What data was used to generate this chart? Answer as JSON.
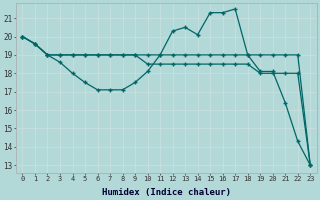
{
  "background_color": "#b2d8d8",
  "grid_color": "#d0e8e8",
  "line_color": "#006666",
  "xlabel": "Humidex (Indice chaleur)",
  "xlim": [
    -0.5,
    23.5
  ],
  "ylim": [
    12.6,
    21.8
  ],
  "yticks": [
    13,
    14,
    15,
    16,
    17,
    18,
    19,
    20,
    21
  ],
  "xticks": [
    0,
    1,
    2,
    3,
    4,
    5,
    6,
    7,
    8,
    9,
    10,
    11,
    12,
    13,
    14,
    15,
    16,
    17,
    18,
    19,
    20,
    21,
    22,
    23
  ],
  "line1_x": [
    0,
    1,
    2,
    3,
    4,
    5,
    6,
    7,
    8,
    9,
    10,
    11,
    12,
    13,
    14,
    15,
    16,
    17,
    18,
    19,
    20,
    21,
    22,
    23
  ],
  "line1_y": [
    20.0,
    19.6,
    19.0,
    18.6,
    18.0,
    17.5,
    17.1,
    17.1,
    17.1,
    17.5,
    18.1,
    19.0,
    20.3,
    20.5,
    20.1,
    21.3,
    21.3,
    21.5,
    19.0,
    18.1,
    18.1,
    16.4,
    14.3,
    13.0
  ],
  "line2_x": [
    0,
    1,
    2,
    3,
    4,
    5,
    6,
    7,
    8,
    9,
    10,
    11,
    12,
    13,
    14,
    15,
    16,
    17,
    18,
    19,
    20,
    21,
    22,
    23
  ],
  "line2_y": [
    20.0,
    19.6,
    19.0,
    19.0,
    19.0,
    19.0,
    19.0,
    19.0,
    19.0,
    19.0,
    18.5,
    18.5,
    18.5,
    18.5,
    18.5,
    18.5,
    18.5,
    18.5,
    18.5,
    18.0,
    18.0,
    18.0,
    18.0,
    13.0
  ],
  "line3_x": [
    0,
    1,
    2,
    3,
    4,
    5,
    6,
    7,
    8,
    9,
    10,
    11,
    12,
    13,
    14,
    15,
    16,
    17,
    18,
    19,
    20,
    21,
    22,
    23
  ],
  "line3_y": [
    20.0,
    19.6,
    19.0,
    19.0,
    19.0,
    19.0,
    19.0,
    19.0,
    19.0,
    19.0,
    19.0,
    19.0,
    19.0,
    19.0,
    19.0,
    19.0,
    19.0,
    19.0,
    19.0,
    19.0,
    19.0,
    19.0,
    19.0,
    13.0
  ]
}
